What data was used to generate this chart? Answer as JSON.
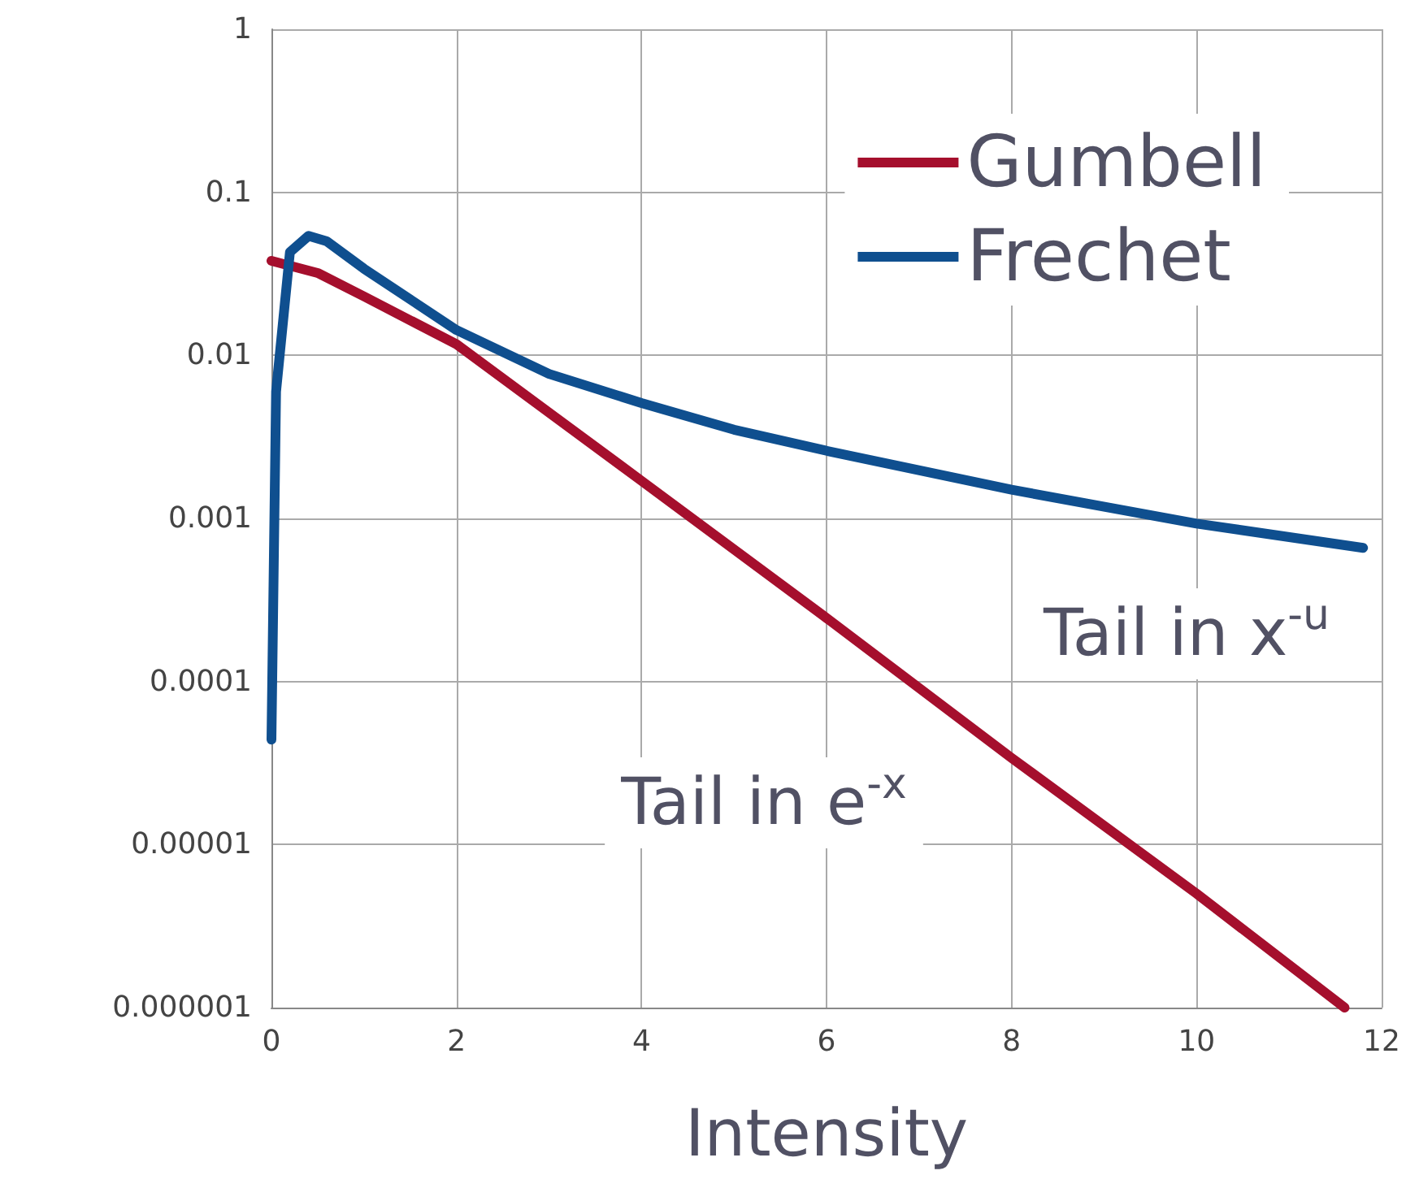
{
  "chart_data": {
    "type": "line",
    "xlabel": "Intensity",
    "log": "y",
    "grid": true,
    "legend": "top right",
    "marker": "none",
    "line_style": "solid",
    "xlim": [
      0,
      12
    ],
    "xticks": [
      0,
      2,
      4,
      6,
      8,
      10,
      12
    ],
    "ylim": [
      1e-06,
      1
    ],
    "yticks": [
      {
        "value": 1e-06,
        "label": "0.000001"
      },
      {
        "value": 1e-05,
        "label": "0.00001"
      },
      0.0001,
      0.001,
      0.01,
      0.1,
      1
    ],
    "series": [
      {
        "name": "Gumbell",
        "color": "#a50f2d",
        "x": [
          0,
          0.5,
          1,
          2,
          4,
          6,
          8,
          10,
          11.6
        ],
        "values": [
          0.038,
          0.032,
          0.023,
          0.0117,
          0.0017,
          0.000245,
          3.4e-05,
          5e-06,
          1e-06
        ]
      },
      {
        "name": "Frechet",
        "color": "#0f4f8f",
        "x": [
          0,
          0.05,
          0.2,
          0.4,
          0.6,
          1,
          2,
          3,
          4,
          5,
          6,
          8,
          10,
          11.8
        ],
        "values": [
          4.4e-05,
          0.006,
          0.043,
          0.054,
          0.05,
          0.034,
          0.0143,
          0.0077,
          0.0051,
          0.0035,
          0.0026,
          0.0015,
          0.00093,
          0.00066
        ]
      }
    ],
    "annotations": [
      "Tail in x$^{-u}$",
      "Tail in e$^{-x}$"
    ]
  }
}
